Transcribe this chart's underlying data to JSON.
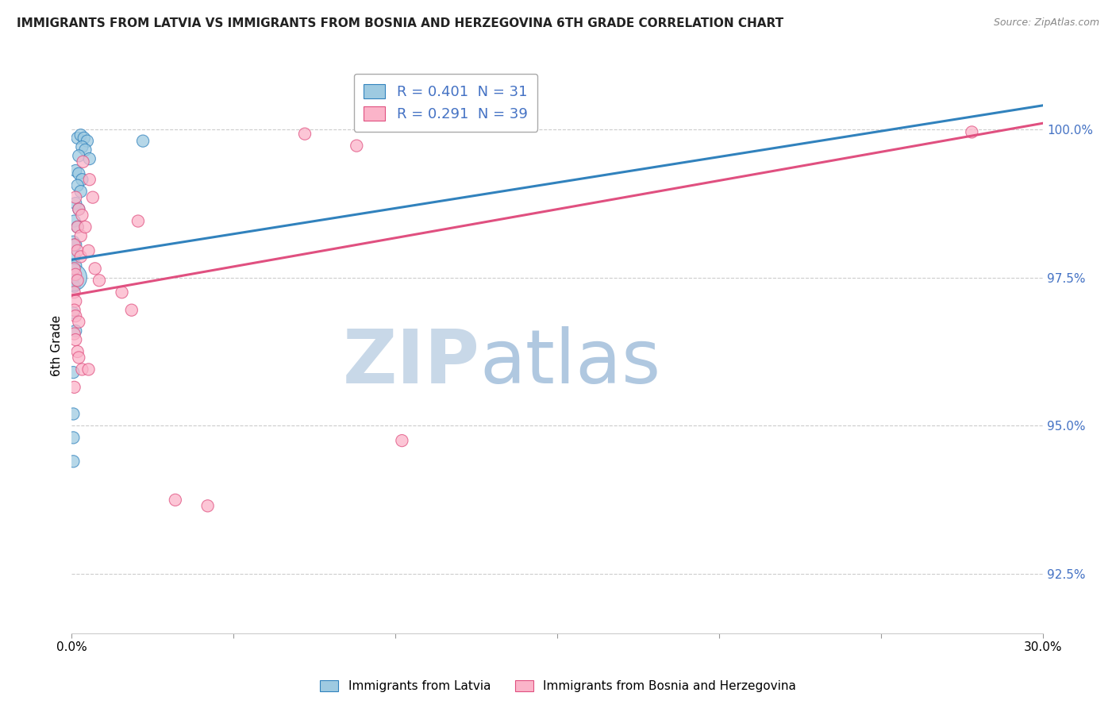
{
  "title": "IMMIGRANTS FROM LATVIA VS IMMIGRANTS FROM BOSNIA AND HERZEGOVINA 6TH GRADE CORRELATION CHART",
  "source": "Source: ZipAtlas.com",
  "ylabel": "6th Grade",
  "y_ticks": [
    92.5,
    95.0,
    97.5,
    100.0
  ],
  "y_tick_labels": [
    "92.5%",
    "95.0%",
    "97.5%",
    "100.0%"
  ],
  "xlim": [
    0.0,
    30.0
  ],
  "ylim": [
    91.5,
    101.2
  ],
  "legend_R_values": [
    "0.401",
    "0.291"
  ],
  "legend_N_values": [
    "31",
    "39"
  ],
  "blue_color": "#9ecae1",
  "pink_color": "#fbb4c9",
  "blue_edge_color": "#3182bd",
  "pink_edge_color": "#e05080",
  "blue_line_color": "#3182bd",
  "pink_line_color": "#e05080",
  "blue_scatter": [
    [
      0.18,
      99.85
    ],
    [
      0.28,
      99.9
    ],
    [
      0.38,
      99.85
    ],
    [
      0.48,
      99.8
    ],
    [
      0.32,
      99.7
    ],
    [
      0.42,
      99.65
    ],
    [
      0.22,
      99.55
    ],
    [
      0.55,
      99.5
    ],
    [
      0.12,
      99.3
    ],
    [
      0.22,
      99.25
    ],
    [
      0.32,
      99.15
    ],
    [
      0.18,
      99.05
    ],
    [
      0.28,
      98.95
    ],
    [
      0.12,
      98.75
    ],
    [
      0.22,
      98.65
    ],
    [
      0.08,
      98.45
    ],
    [
      0.18,
      98.35
    ],
    [
      0.05,
      98.1
    ],
    [
      0.12,
      98.05
    ],
    [
      0.08,
      97.85
    ],
    [
      0.12,
      97.7
    ],
    [
      0.05,
      97.5
    ],
    [
      0.08,
      97.35
    ],
    [
      0.05,
      96.9
    ],
    [
      0.12,
      96.6
    ],
    [
      0.05,
      95.9
    ],
    [
      0.05,
      95.2
    ],
    [
      0.05,
      94.8
    ],
    [
      0.05,
      94.4
    ],
    [
      0.05,
      97.5
    ],
    [
      2.2,
      99.8
    ]
  ],
  "blue_sizes": [
    120,
    120,
    120,
    120,
    120,
    120,
    120,
    120,
    120,
    120,
    120,
    120,
    120,
    120,
    120,
    120,
    120,
    120,
    120,
    120,
    120,
    120,
    120,
    120,
    120,
    120,
    120,
    120,
    120,
    600,
    120
  ],
  "pink_scatter": [
    [
      0.12,
      98.85
    ],
    [
      0.22,
      98.65
    ],
    [
      0.32,
      98.55
    ],
    [
      0.18,
      98.35
    ],
    [
      0.28,
      98.2
    ],
    [
      0.08,
      98.05
    ],
    [
      0.18,
      97.95
    ],
    [
      0.28,
      97.85
    ],
    [
      0.08,
      97.65
    ],
    [
      0.12,
      97.55
    ],
    [
      0.18,
      97.45
    ],
    [
      0.08,
      97.25
    ],
    [
      0.12,
      97.1
    ],
    [
      0.08,
      96.95
    ],
    [
      0.12,
      96.85
    ],
    [
      0.22,
      96.75
    ],
    [
      0.08,
      96.55
    ],
    [
      0.12,
      96.45
    ],
    [
      0.18,
      96.25
    ],
    [
      0.22,
      96.15
    ],
    [
      0.32,
      95.95
    ],
    [
      0.08,
      95.65
    ],
    [
      0.35,
      99.45
    ],
    [
      0.55,
      99.15
    ],
    [
      0.65,
      98.85
    ],
    [
      0.42,
      98.35
    ],
    [
      0.52,
      97.95
    ],
    [
      0.72,
      97.65
    ],
    [
      0.85,
      97.45
    ],
    [
      1.55,
      97.25
    ],
    [
      1.85,
      96.95
    ],
    [
      0.52,
      95.95
    ],
    [
      2.05,
      98.45
    ],
    [
      7.2,
      99.92
    ],
    [
      8.8,
      99.72
    ],
    [
      27.8,
      99.95
    ],
    [
      10.2,
      94.75
    ],
    [
      3.2,
      93.75
    ],
    [
      4.2,
      93.65
    ]
  ],
  "pink_sizes": [
    120,
    120,
    120,
    120,
    120,
    120,
    120,
    120,
    120,
    120,
    120,
    120,
    120,
    120,
    120,
    120,
    120,
    120,
    120,
    120,
    120,
    120,
    120,
    120,
    120,
    120,
    120,
    120,
    120,
    120,
    120,
    120,
    120,
    120,
    120,
    120,
    120,
    120,
    120
  ],
  "blue_trendline": [
    0.0,
    97.8,
    30.0,
    100.4
  ],
  "pink_trendline": [
    0.0,
    97.2,
    30.0,
    100.1
  ],
  "watermark_zip": "ZIP",
  "watermark_atlas": "atlas",
  "watermark_color_zip": "#c8d8e8",
  "watermark_color_atlas": "#b0c8e0",
  "grid_color": "#cccccc",
  "background_color": "#ffffff",
  "tick_color": "#4472c4",
  "legend_text_color": "#4472c4"
}
